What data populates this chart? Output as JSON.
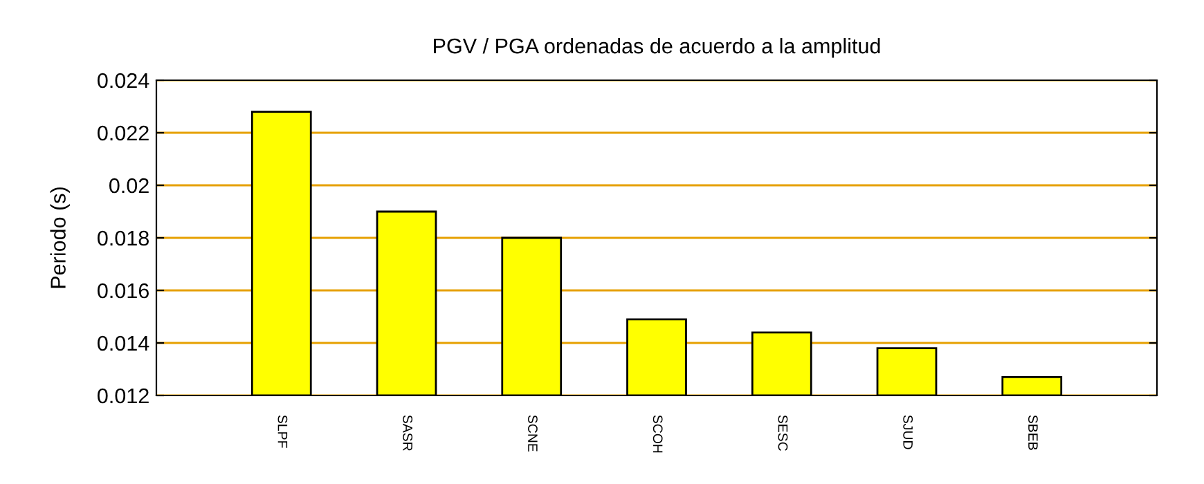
{
  "chart_data": {
    "type": "bar",
    "title": "PGV / PGA ordenadas de acuerdo a la amplitud",
    "ylabel": "Periodo (s)",
    "categories": [
      "SLPF",
      "SASR",
      "SCNE",
      "SCOH",
      "SESC",
      "SJUD",
      "SBEB"
    ],
    "values": [
      0.0228,
      0.019,
      0.018,
      0.0149,
      0.0144,
      0.0138,
      0.0127
    ],
    "color": "#ffff00",
    "ylim": [
      0.012,
      0.024
    ],
    "yticks": [
      0.012,
      0.014,
      0.016,
      0.018,
      0.02,
      0.022,
      0.024
    ],
    "grid": "y"
  }
}
